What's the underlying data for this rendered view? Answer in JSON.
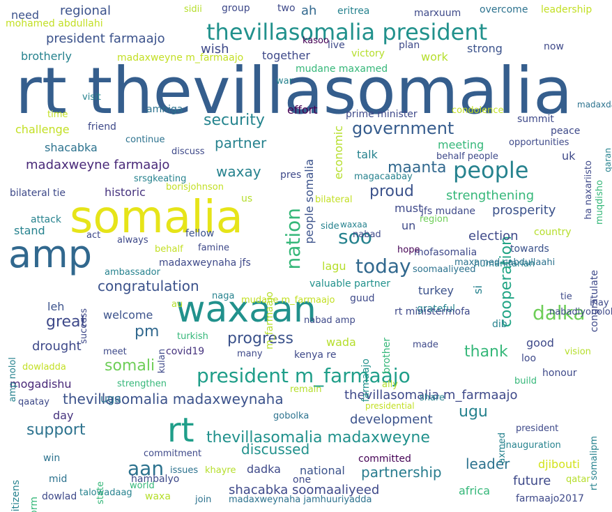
{
  "words": [
    {
      "text": "rt thevillasomalia",
      "color": "#355e8d"
    },
    {
      "text": "somalia",
      "color": "#e6e419"
    },
    {
      "text": "amp",
      "color": "#31688e"
    },
    {
      "text": "waxaan",
      "color": "#21918c"
    },
    {
      "text": "rt",
      "color": "#1f9e89"
    },
    {
      "text": "thevillasomalia president",
      "color": "#21918c"
    },
    {
      "text": "people",
      "color": "#26828e"
    },
    {
      "text": "president m_farmaajo",
      "color": "#1f9e89"
    },
    {
      "text": "today",
      "color": "#31688e"
    },
    {
      "text": "soo",
      "color": "#26828e"
    },
    {
      "text": "nation",
      "color": "#35b779"
    },
    {
      "text": "dalka",
      "color": "#6ece58"
    },
    {
      "text": "government",
      "color": "#365c8d"
    },
    {
      "text": "security",
      "color": "#25848e"
    },
    {
      "text": "partner",
      "color": "#26828e"
    },
    {
      "text": "congratulation",
      "color": "#3b528b"
    },
    {
      "text": "great",
      "color": "#3e4989"
    },
    {
      "text": "pm",
      "color": "#31688e"
    },
    {
      "text": "progress",
      "color": "#3b528b"
    },
    {
      "text": "somali",
      "color": "#6ece58"
    },
    {
      "text": "thevillasomalia madaxweyne",
      "color": "#21918c"
    },
    {
      "text": "thevillasomalia madaxweynaha",
      "color": "#3b528b"
    },
    {
      "text": "aan",
      "color": "#2c728e"
    },
    {
      "text": "cooperation",
      "color": "#21a585"
    },
    {
      "text": "maanta",
      "color": "#31688e"
    },
    {
      "text": "proud",
      "color": "#3b528b"
    },
    {
      "text": "madaxweyne farmaajo",
      "color": "#482878"
    },
    {
      "text": "support",
      "color": "#2c728e"
    },
    {
      "text": "discussed",
      "color": "#21918c"
    },
    {
      "text": "shacabka soomaaliyeed",
      "color": "#3e4989"
    },
    {
      "text": "partnership",
      "color": "#287c8e"
    },
    {
      "text": "leader",
      "color": "#2c728e"
    },
    {
      "text": "ugu",
      "color": "#26828e"
    },
    {
      "text": "thank",
      "color": "#35b779"
    },
    {
      "text": "development",
      "color": "#3b528b"
    },
    {
      "text": "thevillasomalia m_farmaajo",
      "color": "#3e4989"
    },
    {
      "text": "waxay",
      "color": "#26828e"
    },
    {
      "text": "strengthening",
      "color": "#35b779"
    },
    {
      "text": "prosperity",
      "color": "#3b528b"
    },
    {
      "text": "election",
      "color": "#3e4989"
    },
    {
      "text": "president farmaajo",
      "color": "#3b528b"
    },
    {
      "text": "wish",
      "color": "#3e4989"
    },
    {
      "text": "regional",
      "color": "#3b528b"
    },
    {
      "text": "challenge",
      "color": "#c2df23"
    },
    {
      "text": "shacabka",
      "color": "#2c728e"
    },
    {
      "text": "historic",
      "color": "#46337e"
    },
    {
      "text": "drought",
      "color": "#3e4989"
    },
    {
      "text": "welcome",
      "color": "#3b528b"
    },
    {
      "text": "mogadishu",
      "color": "#482878"
    },
    {
      "text": "leh",
      "color": "#3b528b"
    },
    {
      "text": "uga",
      "color": "#2c728e"
    },
    {
      "text": "day",
      "color": "#46337e"
    },
    {
      "text": "madaxweynaha jfs",
      "color": "#3e4989"
    },
    {
      "text": "future",
      "color": "#3e4989"
    },
    {
      "text": "africa",
      "color": "#35b779"
    },
    {
      "text": "dadka",
      "color": "#3e4989"
    },
    {
      "text": "national",
      "color": "#3b528b"
    },
    {
      "text": "wada",
      "color": "#b5de2b"
    },
    {
      "text": "good",
      "color": "#3e4989"
    },
    {
      "text": "meeting",
      "color": "#35b779"
    },
    {
      "text": "talk",
      "color": "#26828e"
    },
    {
      "text": "uk",
      "color": "#3e4989"
    },
    {
      "text": "must",
      "color": "#3e4989"
    },
    {
      "text": "un",
      "color": "#3e4989"
    },
    {
      "text": "summit",
      "color": "#3e4989"
    },
    {
      "text": "peace",
      "color": "#3e4989"
    },
    {
      "text": "economic",
      "color": "#b5de2b"
    },
    {
      "text": "people somalia",
      "color": "#3b528b"
    },
    {
      "text": "si",
      "color": "#26828e"
    },
    {
      "text": "djibouti",
      "color": "#d2e21b"
    },
    {
      "text": "work",
      "color": "#b5de2b"
    },
    {
      "text": "together",
      "color": "#3e4989"
    },
    {
      "text": "ah",
      "color": "#31688e"
    },
    {
      "text": "strong",
      "color": "#3b528b"
    },
    {
      "text": "brotherly",
      "color": "#26828e"
    },
    {
      "text": "need",
      "color": "#3b528b"
    },
    {
      "text": "effort",
      "color": "#440154"
    },
    {
      "text": "amniga",
      "color": "#2c728e"
    },
    {
      "text": "towards",
      "color": "#3b528b"
    },
    {
      "text": "congratulate",
      "color": "#3e4989"
    },
    {
      "text": "honour",
      "color": "#3e4989"
    },
    {
      "text": "lagu",
      "color": "#b5de2b"
    },
    {
      "text": "turkey",
      "color": "#3b528b"
    },
    {
      "text": "country",
      "color": "#b5de2b"
    },
    {
      "text": "covid19",
      "color": "#46337e"
    },
    {
      "text": "stand",
      "color": "#26828e"
    },
    {
      "text": "fellow",
      "color": "#3b528b"
    },
    {
      "text": "valuable partner",
      "color": "#21918c"
    },
    {
      "text": "grateful",
      "color": "#26828e"
    },
    {
      "text": "kenya re",
      "color": "#3e4989"
    },
    {
      "text": "guud",
      "color": "#3e4989"
    },
    {
      "text": "continue",
      "color": "#2c728e"
    },
    {
      "text": "friend",
      "color": "#3e4989"
    },
    {
      "text": "time",
      "color": "#c2df23"
    },
    {
      "text": "visit",
      "color": "#26828e"
    },
    {
      "text": "mid",
      "color": "#2c728e"
    },
    {
      "text": "win",
      "color": "#2c728e"
    },
    {
      "text": "citizens",
      "color": "#26828e"
    },
    {
      "text": "reform",
      "color": "#35b779"
    },
    {
      "text": "dowlad",
      "color": "#3e4989"
    },
    {
      "text": "waxa",
      "color": "#b5de2b"
    },
    {
      "text": "hambalyo",
      "color": "#3e4989"
    },
    {
      "text": "issues",
      "color": "#2c728e"
    },
    {
      "text": "commitment",
      "color": "#3e4989"
    },
    {
      "text": "inauguration",
      "color": "#26828e"
    },
    {
      "text": "president",
      "color": "#3e4989"
    },
    {
      "text": "rt somalipm",
      "color": "#26828e"
    },
    {
      "text": "committed",
      "color": "#440154"
    },
    {
      "text": "one",
      "color": "#3e4989"
    },
    {
      "text": "build",
      "color": "#35b779"
    },
    {
      "text": "loo",
      "color": "#3e4989"
    },
    {
      "text": "vision",
      "color": "#b5de2b"
    },
    {
      "text": "dib",
      "color": "#26828e"
    },
    {
      "text": "made",
      "color": "#3e4989"
    },
    {
      "text": "nabad amp",
      "color": "#3e4989"
    },
    {
      "text": "many",
      "color": "#3e4989"
    },
    {
      "text": "meet",
      "color": "#3e4989"
    },
    {
      "text": "famine",
      "color": "#3e4989"
    },
    {
      "text": "act",
      "color": "#3e4989"
    },
    {
      "text": "always",
      "color": "#3e4989"
    },
    {
      "text": "behalf",
      "color": "#c2df23"
    },
    {
      "text": "humanitarian",
      "color": "#26828e"
    },
    {
      "text": "region",
      "color": "#6ece58"
    },
    {
      "text": "jfs mudane",
      "color": "#3e4989"
    },
    {
      "text": "mofasomalia",
      "color": "#3e4989"
    },
    {
      "text": "hope",
      "color": "#440154"
    },
    {
      "text": "maxamed cabdullaahi",
      "color": "#2c728e"
    },
    {
      "text": "soomaaliyeed",
      "color": "#2c728e"
    },
    {
      "text": "tie",
      "color": "#3e4989"
    },
    {
      "text": "inay",
      "color": "#3e4989"
    },
    {
      "text": "nabadiyonolol",
      "color": "#3e4989"
    },
    {
      "text": "rt ministermofa",
      "color": "#3e4989"
    },
    {
      "text": "brother",
      "color": "#35b779"
    },
    {
      "text": "farmaajo",
      "color": "#21918c"
    },
    {
      "text": "ally",
      "color": "#b5de2b"
    },
    {
      "text": "remain",
      "color": "#b5de2b"
    },
    {
      "text": "presidential",
      "color": "#c2df23"
    },
    {
      "text": "share",
      "color": "#26828e"
    },
    {
      "text": "gobolka",
      "color": "#2c728e"
    },
    {
      "text": "axmed",
      "color": "#26828e"
    },
    {
      "text": "qatar",
      "color": "#b5de2b"
    },
    {
      "text": "farmaajo2017",
      "color": "#3e4989"
    },
    {
      "text": "madaxweynaha jamhuuriyadda",
      "color": "#2c728e"
    },
    {
      "text": "join",
      "color": "#2c728e"
    },
    {
      "text": "world",
      "color": "#35b779"
    },
    {
      "text": "talowadaag",
      "color": "#26828e"
    },
    {
      "text": "khayre",
      "color": "#b5de2b"
    },
    {
      "text": "state",
      "color": "#35b779"
    },
    {
      "text": "qaatay",
      "color": "#3e4989"
    },
    {
      "text": "strengthen",
      "color": "#35b779"
    },
    {
      "text": "dowladda",
      "color": "#c2df23"
    },
    {
      "text": "amp nolol",
      "color": "#26828e"
    },
    {
      "text": "success",
      "color": "#3e4989"
    },
    {
      "text": "ambassador",
      "color": "#26828e"
    },
    {
      "text": "au",
      "color": "#b5de2b"
    },
    {
      "text": "turkish",
      "color": "#35b779"
    },
    {
      "text": "kulan",
      "color": "#3e4989"
    },
    {
      "text": "naga",
      "color": "#26828e"
    },
    {
      "text": "mudane m_farmaajo",
      "color": "#c2df23"
    },
    {
      "text": "m_farmaajo",
      "color": "#b5de2b"
    },
    {
      "text": "side",
      "color": "#26828e"
    },
    {
      "text": "waxaa",
      "color": "#26828e"
    },
    {
      "text": "nabad",
      "color": "#3e4989"
    },
    {
      "text": "bilateral",
      "color": "#c2df23"
    },
    {
      "text": "attack",
      "color": "#26828e"
    },
    {
      "text": "us",
      "color": "#b5de2b"
    },
    {
      "text": "bilateral tie",
      "color": "#3e4989"
    },
    {
      "text": "borisjohnson",
      "color": "#c2df23"
    },
    {
      "text": "srsgkeating",
      "color": "#26828e"
    },
    {
      "text": "pres",
      "color": "#3e4989"
    },
    {
      "text": "magacaabay",
      "color": "#26828e"
    },
    {
      "text": "discuss",
      "color": "#3e4989"
    },
    {
      "text": "behalf people",
      "color": "#3e4989"
    },
    {
      "text": "opportunities",
      "color": "#3e4989"
    },
    {
      "text": "ha naxariisto",
      "color": "#3e4989"
    },
    {
      "text": "muqdisho",
      "color": "#35b779"
    },
    {
      "text": "qaran",
      "color": "#26828e"
    },
    {
      "text": "madaxda",
      "color": "#2c728e"
    },
    {
      "text": "condolence",
      "color": "#c2df23"
    },
    {
      "text": "prime minister",
      "color": "#3e4989"
    },
    {
      "text": "war",
      "color": "#26828e"
    },
    {
      "text": "mudane maxamed",
      "color": "#35b779"
    },
    {
      "text": "victory",
      "color": "#b5de2b"
    },
    {
      "text": "plan",
      "color": "#3e4989"
    },
    {
      "text": "live",
      "color": "#3e4989"
    },
    {
      "text": "kasoo",
      "color": "#440154"
    },
    {
      "text": "madaxweyne m_farmaajo",
      "color": "#c2df23"
    },
    {
      "text": "mohamed abdullahi",
      "color": "#c2df23"
    },
    {
      "text": "sidii",
      "color": "#b5de2b"
    },
    {
      "text": "group",
      "color": "#3e4989"
    },
    {
      "text": "two",
      "color": "#3e4989"
    },
    {
      "text": "eritrea",
      "color": "#26828e"
    },
    {
      "text": "marxuum",
      "color": "#3e4989"
    },
    {
      "text": "overcome",
      "color": "#2c728e"
    },
    {
      "text": "leadership",
      "color": "#c2df23"
    },
    {
      "text": "now",
      "color": "#3e4989"
    }
  ]
}
